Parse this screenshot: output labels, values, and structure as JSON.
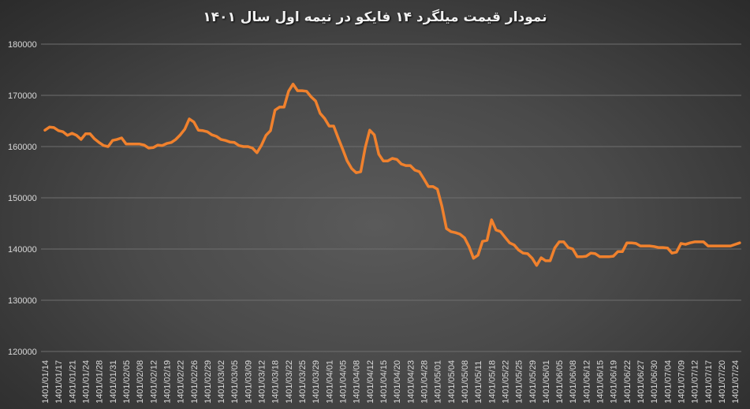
{
  "chart_data": {
    "type": "line",
    "title": "نمودار قیمت میلگرد ۱۴ فایکو در نیمه اول سال ۱۴۰۱",
    "xlabel": "",
    "ylabel": "",
    "ylim": [
      120000,
      180000
    ],
    "y_ticks": [
      "120000",
      "130000",
      "140000",
      "150000",
      "160000",
      "170000",
      "180000"
    ],
    "grid": true,
    "legend": "none",
    "line_color": "#F0812D",
    "x_tick_labels": [
      "1401/01/14",
      "1401/01/17",
      "1401/01/21",
      "1401/01/24",
      "1401/01/28",
      "1401/01/31",
      "1401/02/05",
      "1401/02/08",
      "1401/02/12",
      "1401/02/19",
      "1401/02/22",
      "1401/02/26",
      "1401/02/29",
      "1401/03/02",
      "1401/03/05",
      "1401/03/09",
      "1401/03/12",
      "1401/03/18",
      "1401/03/22",
      "1401/03/25",
      "1401/03/29",
      "1401/04/01",
      "1401/04/05",
      "1401/04/08",
      "1401/04/12",
      "1401/04/15",
      "1401/04/20",
      "1401/04/23",
      "1401/04/28",
      "1401/05/01",
      "1401/05/04",
      "1401/05/08",
      "1401/05/11",
      "1401/05/18",
      "1401/05/22",
      "1401/05/25",
      "1401/05/29",
      "1401/06/01",
      "1401/06/05",
      "1401/06/08",
      "1401/06/12",
      "1401/06/15",
      "1401/06/19",
      "1401/06/22",
      "1401/06/27",
      "1401/06/30",
      "1401/07/04",
      "1401/07/09",
      "1401/07/12",
      "1401/07/17",
      "1401/07/20",
      "1401/07/24"
    ],
    "values": [
      163200,
      163800,
      163700,
      163100,
      162900,
      162200,
      162600,
      162200,
      161400,
      162500,
      162500,
      161500,
      160800,
      160200,
      160000,
      161200,
      161400,
      161700,
      160500,
      160500,
      160500,
      160500,
      160300,
      159700,
      159800,
      160300,
      160200,
      160600,
      160800,
      161400,
      162300,
      163400,
      165400,
      164800,
      163200,
      163100,
      162900,
      162300,
      162000,
      161400,
      161200,
      160900,
      160800,
      160200,
      160000,
      160000,
      159700,
      158800,
      160300,
      162200,
      163100,
      167100,
      167700,
      167700,
      170800,
      172200,
      170900,
      170900,
      170800,
      169700,
      168900,
      166500,
      165500,
      164000,
      164000,
      161700,
      159500,
      157200,
      155700,
      154900,
      155100,
      159800,
      163200,
      162300,
      158500,
      157200,
      157200,
      157700,
      157500,
      156600,
      156300,
      156300,
      155400,
      155100,
      153700,
      152200,
      152200,
      151700,
      148300,
      144000,
      143400,
      143200,
      142900,
      142200,
      140500,
      138200,
      138800,
      141500,
      141700,
      145700,
      143700,
      143400,
      142300,
      141200,
      140800,
      139800,
      139200,
      139100,
      138200,
      136800,
      138300,
      137700,
      137700,
      140200,
      141400,
      141400,
      140300,
      140000,
      138500,
      138500,
      138600,
      139200,
      139100,
      138500,
      138500,
      138500,
      138600,
      139500,
      139500,
      141200,
      141200,
      141100,
      140600,
      140600,
      140600,
      140500,
      140300,
      140300,
      140200,
      139200,
      139400,
      141100,
      140900,
      141200,
      141400,
      141400,
      141400,
      140600,
      140600,
      140600,
      140600,
      140600,
      140600,
      140900,
      141200
    ]
  }
}
